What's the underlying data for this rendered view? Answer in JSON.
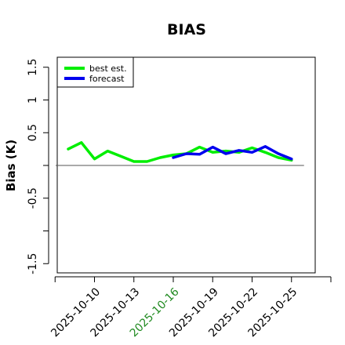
{
  "chart_data": {
    "type": "line",
    "title": "BIAS",
    "xlabel": "",
    "ylabel": "Bias (K)",
    "x": [
      "2025-10-08",
      "2025-10-09",
      "2025-10-10",
      "2025-10-11",
      "2025-10-12",
      "2025-10-13",
      "2025-10-14",
      "2025-10-15",
      "2025-10-16",
      "2025-10-17",
      "2025-10-18",
      "2025-10-19",
      "2025-10-20",
      "2025-10-21",
      "2025-10-22",
      "2025-10-23",
      "2025-10-24",
      "2025-10-25"
    ],
    "xticks": [
      "2025-10-10",
      "2025-10-13",
      "2025-10-16",
      "2025-10-19",
      "2025-10-22",
      "2025-10-25"
    ],
    "xticks_minor": [
      "2025-10-07",
      "2025-10-28"
    ],
    "xtick_highlight": "2025-10-16",
    "xtick_highlight_color": "#228b22",
    "yticks": [
      -1.5,
      -0.5,
      0.5,
      1.0,
      1.5
    ],
    "yticks_unlabeled": [
      -1.0,
      0.0
    ],
    "ylim": [
      -1.6,
      1.7
    ],
    "reference_line": 0,
    "series": [
      {
        "name": "best est.",
        "color": "#00ee00",
        "x": [
          "2025-10-08",
          "2025-10-09",
          "2025-10-10",
          "2025-10-11",
          "2025-10-12",
          "2025-10-13",
          "2025-10-14",
          "2025-10-15",
          "2025-10-16",
          "2025-10-17",
          "2025-10-18",
          "2025-10-19",
          "2025-10-20",
          "2025-10-21",
          "2025-10-22",
          "2025-10-23",
          "2025-10-24",
          "2025-10-25"
        ],
        "values": [
          0.25,
          0.35,
          0.1,
          0.22,
          0.14,
          0.06,
          0.06,
          0.12,
          0.16,
          0.18,
          0.28,
          0.2,
          0.22,
          0.2,
          0.27,
          0.2,
          0.12,
          0.08
        ]
      },
      {
        "name": "forecast",
        "color": "#0000ee",
        "x": [
          "2025-10-16",
          "2025-10-17",
          "2025-10-18",
          "2025-10-19",
          "2025-10-20",
          "2025-10-21",
          "2025-10-22",
          "2025-10-23",
          "2025-10-24",
          "2025-10-25"
        ],
        "values": [
          0.12,
          0.18,
          0.17,
          0.28,
          0.18,
          0.23,
          0.2,
          0.29,
          0.18,
          0.1
        ]
      }
    ],
    "legend_position": "top-left"
  }
}
